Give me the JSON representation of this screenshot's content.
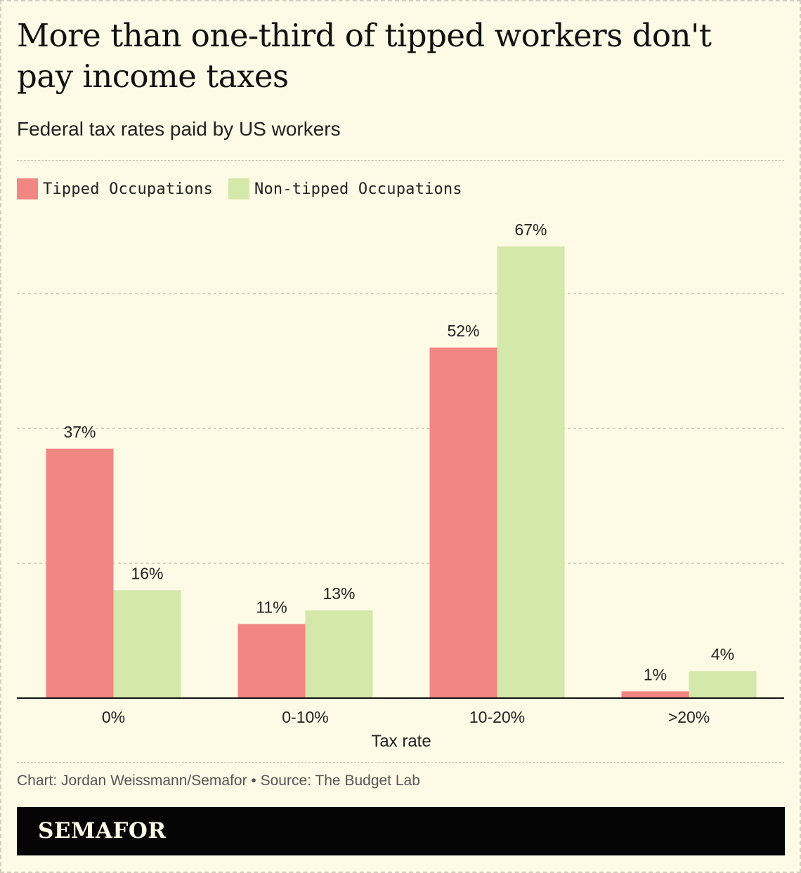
{
  "title": "More than one-third of tipped workers don't pay income taxes",
  "subtitle": "Federal tax rates paid by US workers",
  "source": "Chart: Jordan Weissmann/Semafor • Source: The Budget Lab",
  "brand": "SEMAFOR",
  "chart_data": {
    "type": "bar",
    "xlabel": "Tax rate",
    "ylabel": "",
    "categories": [
      "0%",
      "0-10%",
      "10-20%",
      ">20%"
    ],
    "ylim": [
      0,
      80
    ],
    "grid": true,
    "legend_position": "top-left",
    "series": [
      {
        "name": "Tipped Occupations",
        "color": "#f28683",
        "values": [
          37,
          11,
          52,
          1
        ],
        "labels": [
          "37%",
          "11%",
          "52%",
          "1%"
        ]
      },
      {
        "name": "Non-tipped Occupations",
        "color": "#d3e8a9",
        "values": [
          16,
          13,
          67,
          4
        ],
        "labels": [
          "16%",
          "13%",
          "67%",
          "4%"
        ]
      }
    ]
  }
}
